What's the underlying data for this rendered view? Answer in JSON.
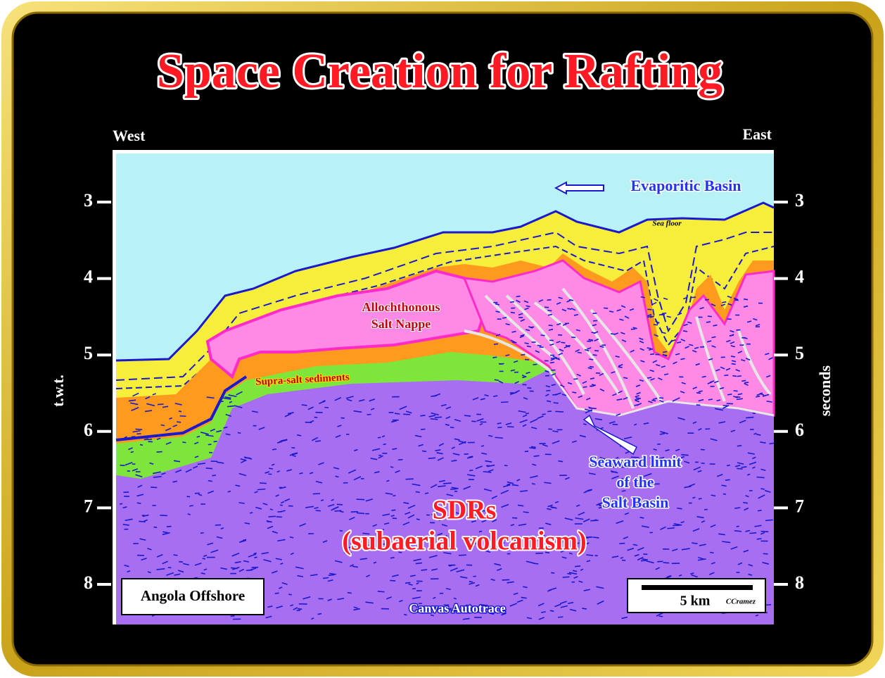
{
  "title": "Space Creation for Rafting",
  "orientation": {
    "west": "West",
    "east": "East"
  },
  "axes": {
    "left_label": "t.w.t.",
    "right_label": "seconds",
    "ticks": [
      3,
      4,
      5,
      6,
      7,
      8
    ]
  },
  "labels": {
    "evaporitic_basin": "Evaporitic Basin",
    "sea_floor": "Sea floor",
    "salt_nappe": [
      "Allochthonous",
      "Salt Nappe"
    ],
    "supra_salt": "Supra-salt sediments",
    "seaward_limit": [
      "Seaward limit",
      "of the",
      "Salt Basin"
    ],
    "sdrs": [
      "SDRs",
      "(subaerial volcanism)"
    ],
    "location": "Angola Offshore",
    "scale": "5 km",
    "author": "CCramez",
    "credit": "Canvas Autotrace"
  }
}
